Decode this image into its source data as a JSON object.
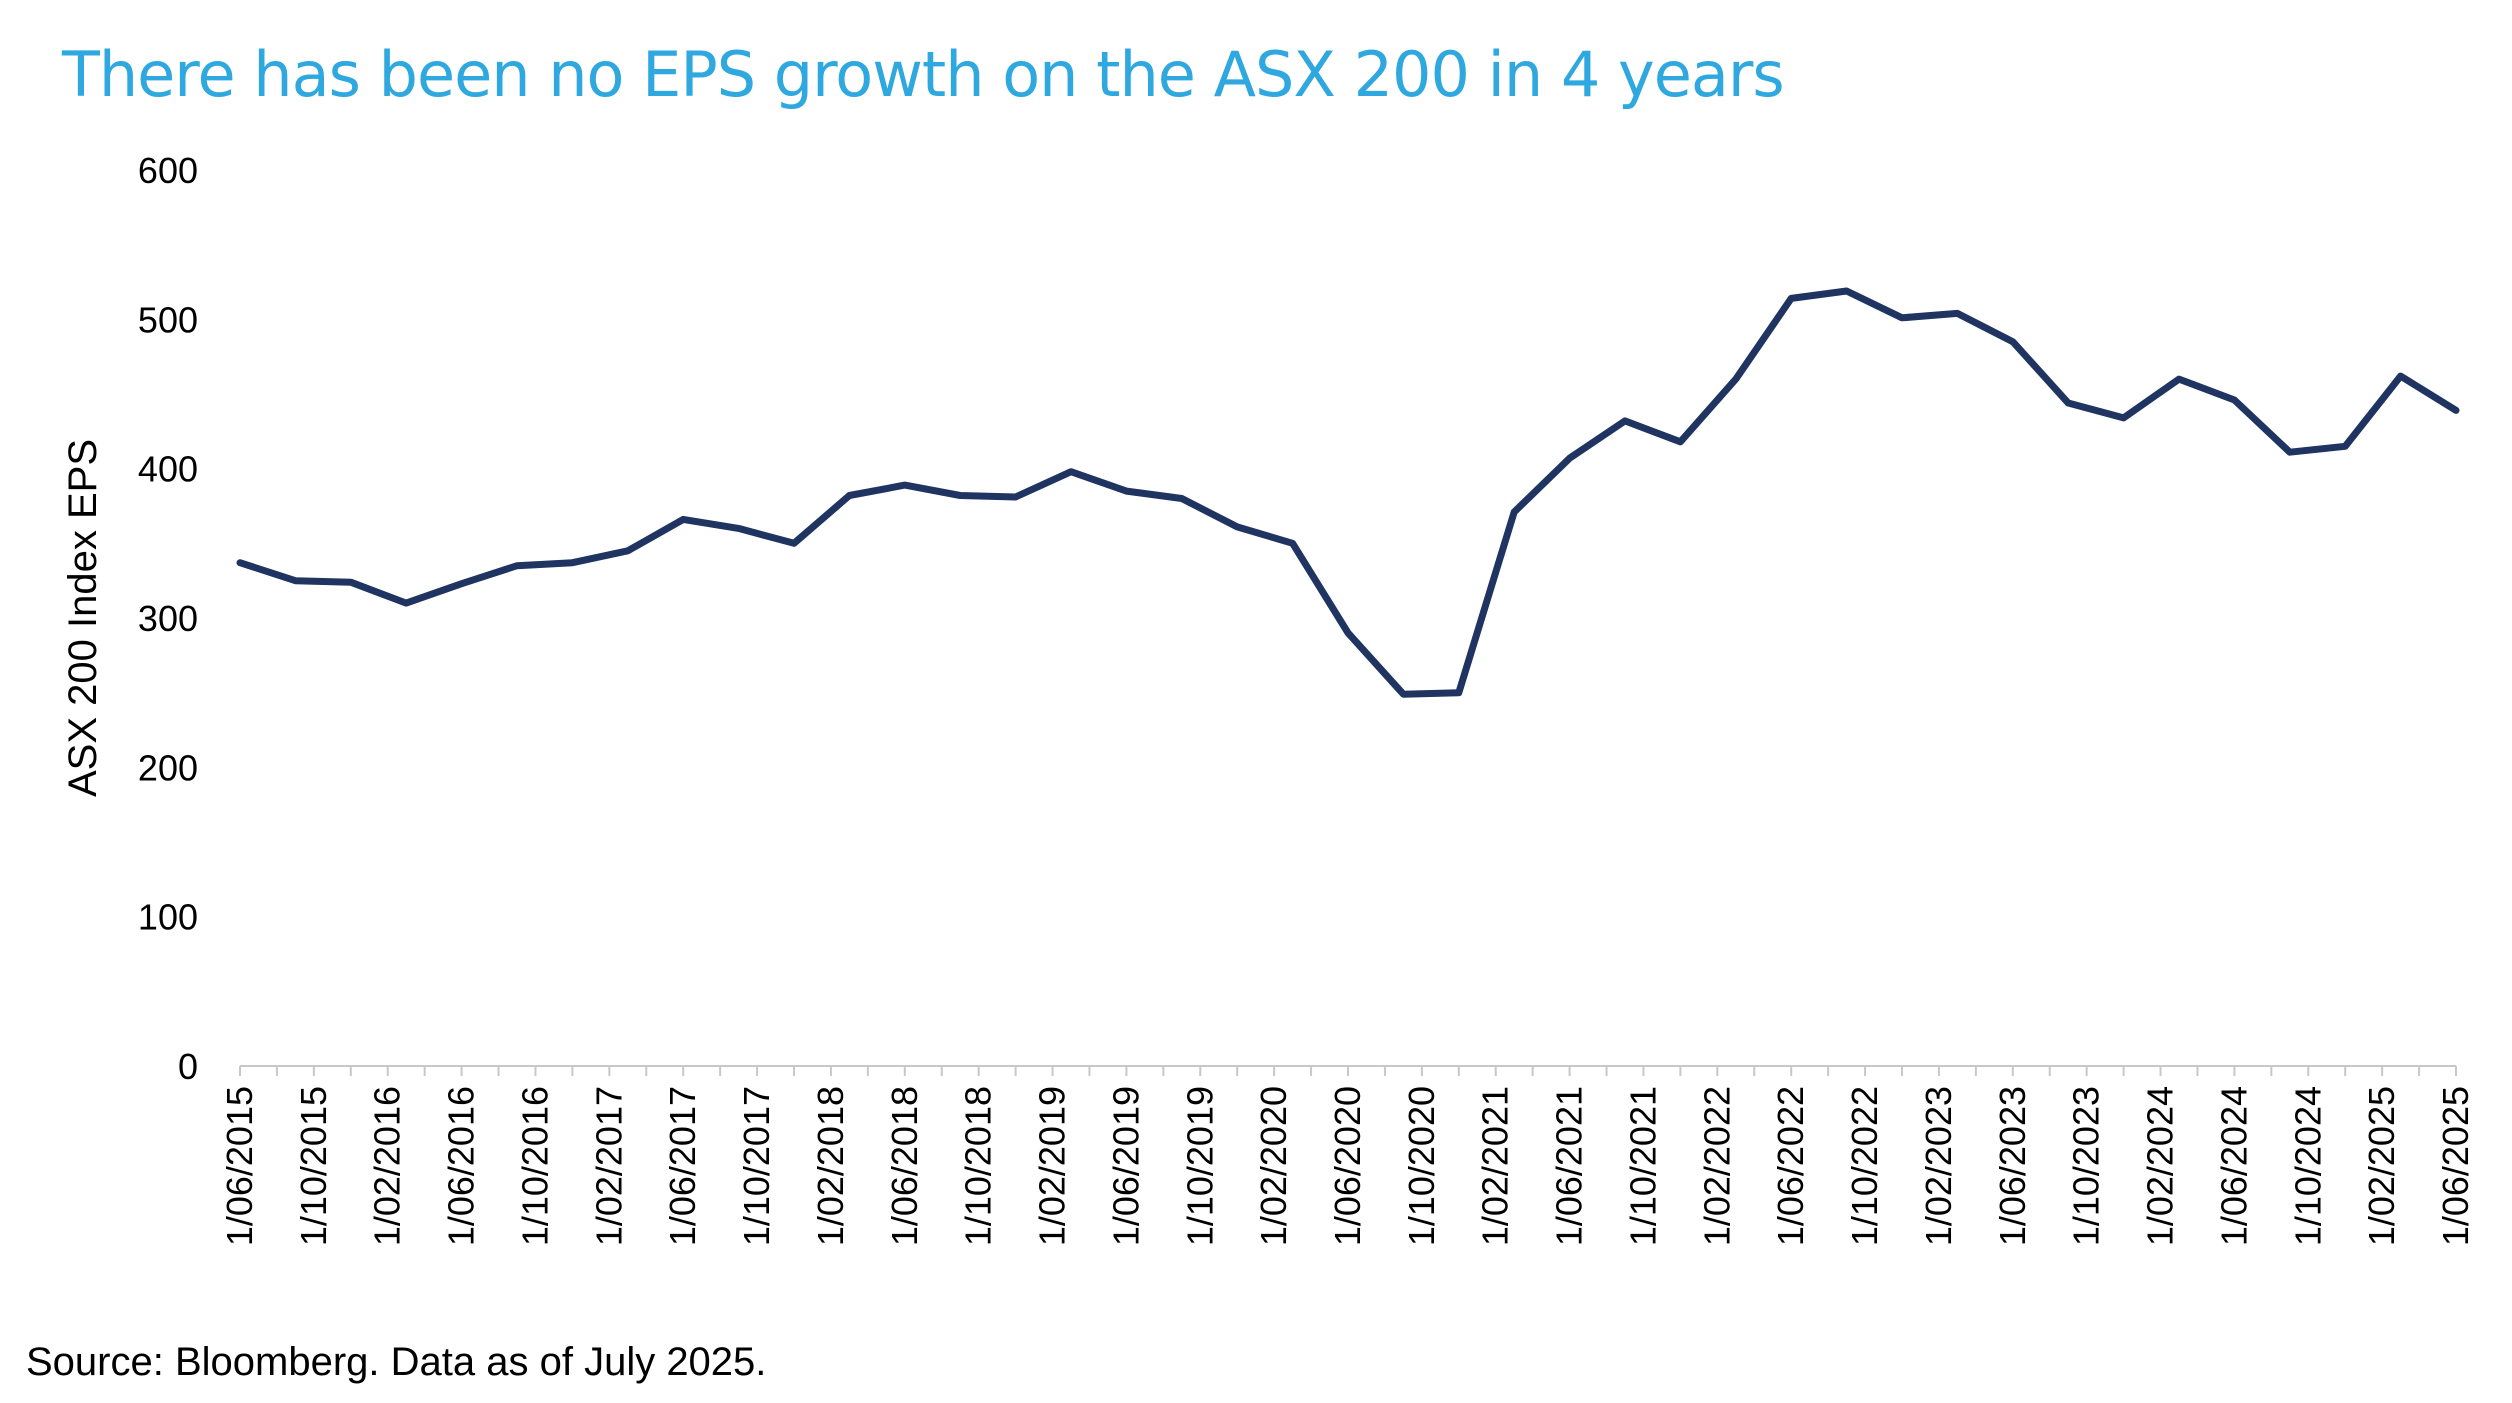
{
  "source": "Source: Bloomberg. Data as of July 2025.",
  "colors": {
    "title": "#2ea8df",
    "line": "#1f3461",
    "axis": "#c8c8c8"
  },
  "chart_data": {
    "type": "line",
    "title": "There has been no EPS growth on the ASX 200 in 4 years",
    "xlabel": "",
    "ylabel": "ASX 200 Index EPS",
    "ylim": [
      0,
      600
    ],
    "yticks": [
      0,
      100,
      200,
      300,
      400,
      500,
      600
    ],
    "grid": false,
    "x_tick_labels": [
      "1/06/2015",
      "1/10/2015",
      "1/02/2016",
      "1/06/2016",
      "1/10/2016",
      "1/02/2017",
      "1/06/2017",
      "1/10/2017",
      "1/02/2018",
      "1/06/2018",
      "1/10/2018",
      "1/02/2019",
      "1/06/2019",
      "1/10/2019",
      "1/02/2020",
      "1/06/2020",
      "1/10/2020",
      "1/02/2021",
      "1/06/2021",
      "1/10/2021",
      "1/02/2022",
      "1/06/2022",
      "1/10/2022",
      "1/02/2023",
      "1/06/2023",
      "1/10/2023",
      "1/02/2024",
      "1/06/2024",
      "1/10/2024",
      "1/02/2025",
      "1/06/2025"
    ],
    "x_range_months": [
      0,
      120
    ],
    "series": [
      {
        "name": "ASX 200 Index EPS",
        "x_months": [
          0,
          3,
          6,
          9,
          12,
          15,
          18,
          21,
          24,
          27,
          30,
          33,
          36,
          39,
          42,
          45,
          48,
          51,
          54,
          57,
          60,
          63,
          66,
          69,
          72,
          75,
          78,
          81,
          84,
          87,
          90,
          93,
          96,
          99,
          102,
          105,
          108,
          111,
          114,
          117,
          120
        ],
        "values": [
          337,
          325,
          324,
          310,
          323,
          335,
          337,
          345,
          366,
          360,
          350,
          382,
          389,
          382,
          381,
          398,
          385,
          380,
          361,
          350,
          290,
          249,
          250,
          371,
          407,
          432,
          418,
          460,
          514,
          519,
          501,
          504,
          485,
          444,
          434,
          460,
          446,
          411,
          415,
          462,
          439
        ]
      }
    ]
  }
}
